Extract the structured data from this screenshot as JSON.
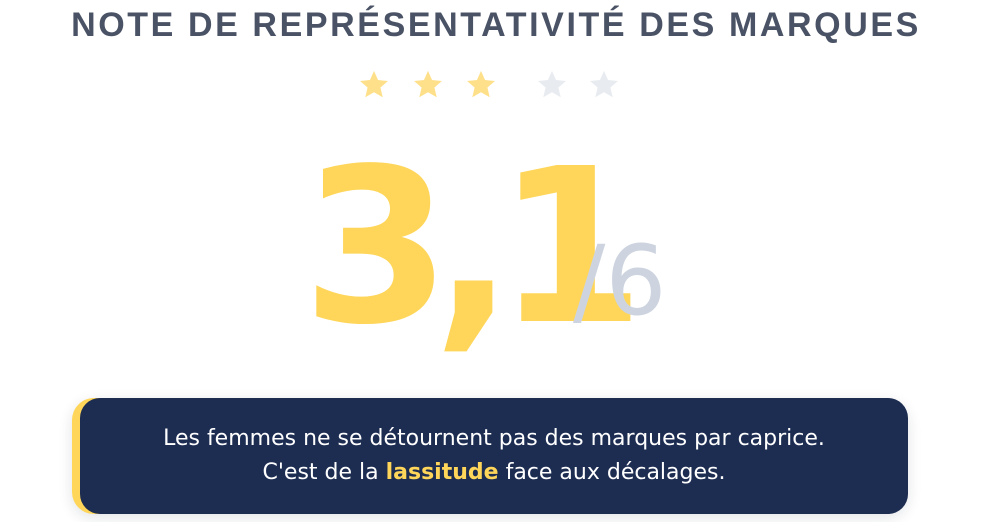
{
  "title": "NOTE DE REPRÉSENTATIVITÉ DES MARQUES",
  "rating": {
    "stars_filled": 3,
    "stars_total": 5,
    "score": "3,1",
    "score_max": "/6",
    "colors": {
      "filled": "#ffe08a",
      "empty": "#e8ecf1",
      "score": "#ffd659",
      "max": "#cdd4df"
    }
  },
  "callout": {
    "line1": "Les femmes ne se détournent pas des marques par caprice.",
    "line2_before": "C'est de la ",
    "line2_highlight": "lassitude",
    "line2_after": " face aux décalages.",
    "colors": {
      "background": "#1d2d52",
      "accent": "#ffd659",
      "text": "#ffffff"
    }
  }
}
